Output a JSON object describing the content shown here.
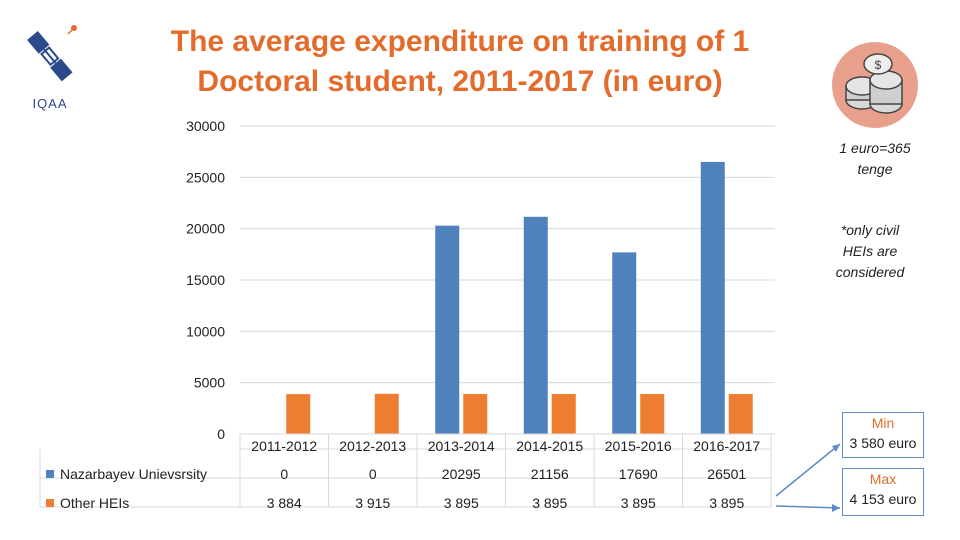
{
  "title": {
    "line1": "The average expenditure on training of 1",
    "line2": "Doctoral student, 2011-2017 (in euro)"
  },
  "logo": {
    "text": "IQAA",
    "icon": "satellite-logo-icon"
  },
  "illustration": {
    "icon": "coins-icon"
  },
  "notes": {
    "rate_line1": "1 euro=365",
    "rate_line2": "tenge",
    "civil_line1": "*only civil",
    "civil_line2": "HEIs are",
    "civil_line3": "considered"
  },
  "callouts": {
    "min_label": "Min",
    "min_value": "3 580 euro",
    "max_label": "Max",
    "max_value": "4 153 euro"
  },
  "colors": {
    "series1": "#4f81bd",
    "series2": "#ed7d31",
    "title": "#e36c2c"
  },
  "chart_data": {
    "type": "bar",
    "categories": [
      "2011-2012",
      "2012-2013",
      "2013-2014",
      "2014-2015",
      "2015-2016",
      "2016-2017"
    ],
    "series": [
      {
        "name": "Nazarbayev Unievsrsity",
        "values": [
          0,
          0,
          20295,
          21156,
          17690,
          26501
        ],
        "labels": [
          "0",
          "0",
          "20295",
          "21156",
          "17690",
          "26501"
        ],
        "color": "#4f81bd"
      },
      {
        "name": "Other HEIs",
        "values": [
          3884,
          3915,
          3895,
          3895,
          3895,
          3895
        ],
        "labels": [
          "3 884",
          "3 915",
          "3 895",
          "3 895",
          "3 895",
          "3 895"
        ],
        "color": "#ed7d31"
      }
    ],
    "yticks": [
      0,
      5000,
      10000,
      15000,
      20000,
      25000,
      30000
    ],
    "ylim": [
      0,
      30000
    ],
    "grid": true,
    "legend": "data-table"
  }
}
